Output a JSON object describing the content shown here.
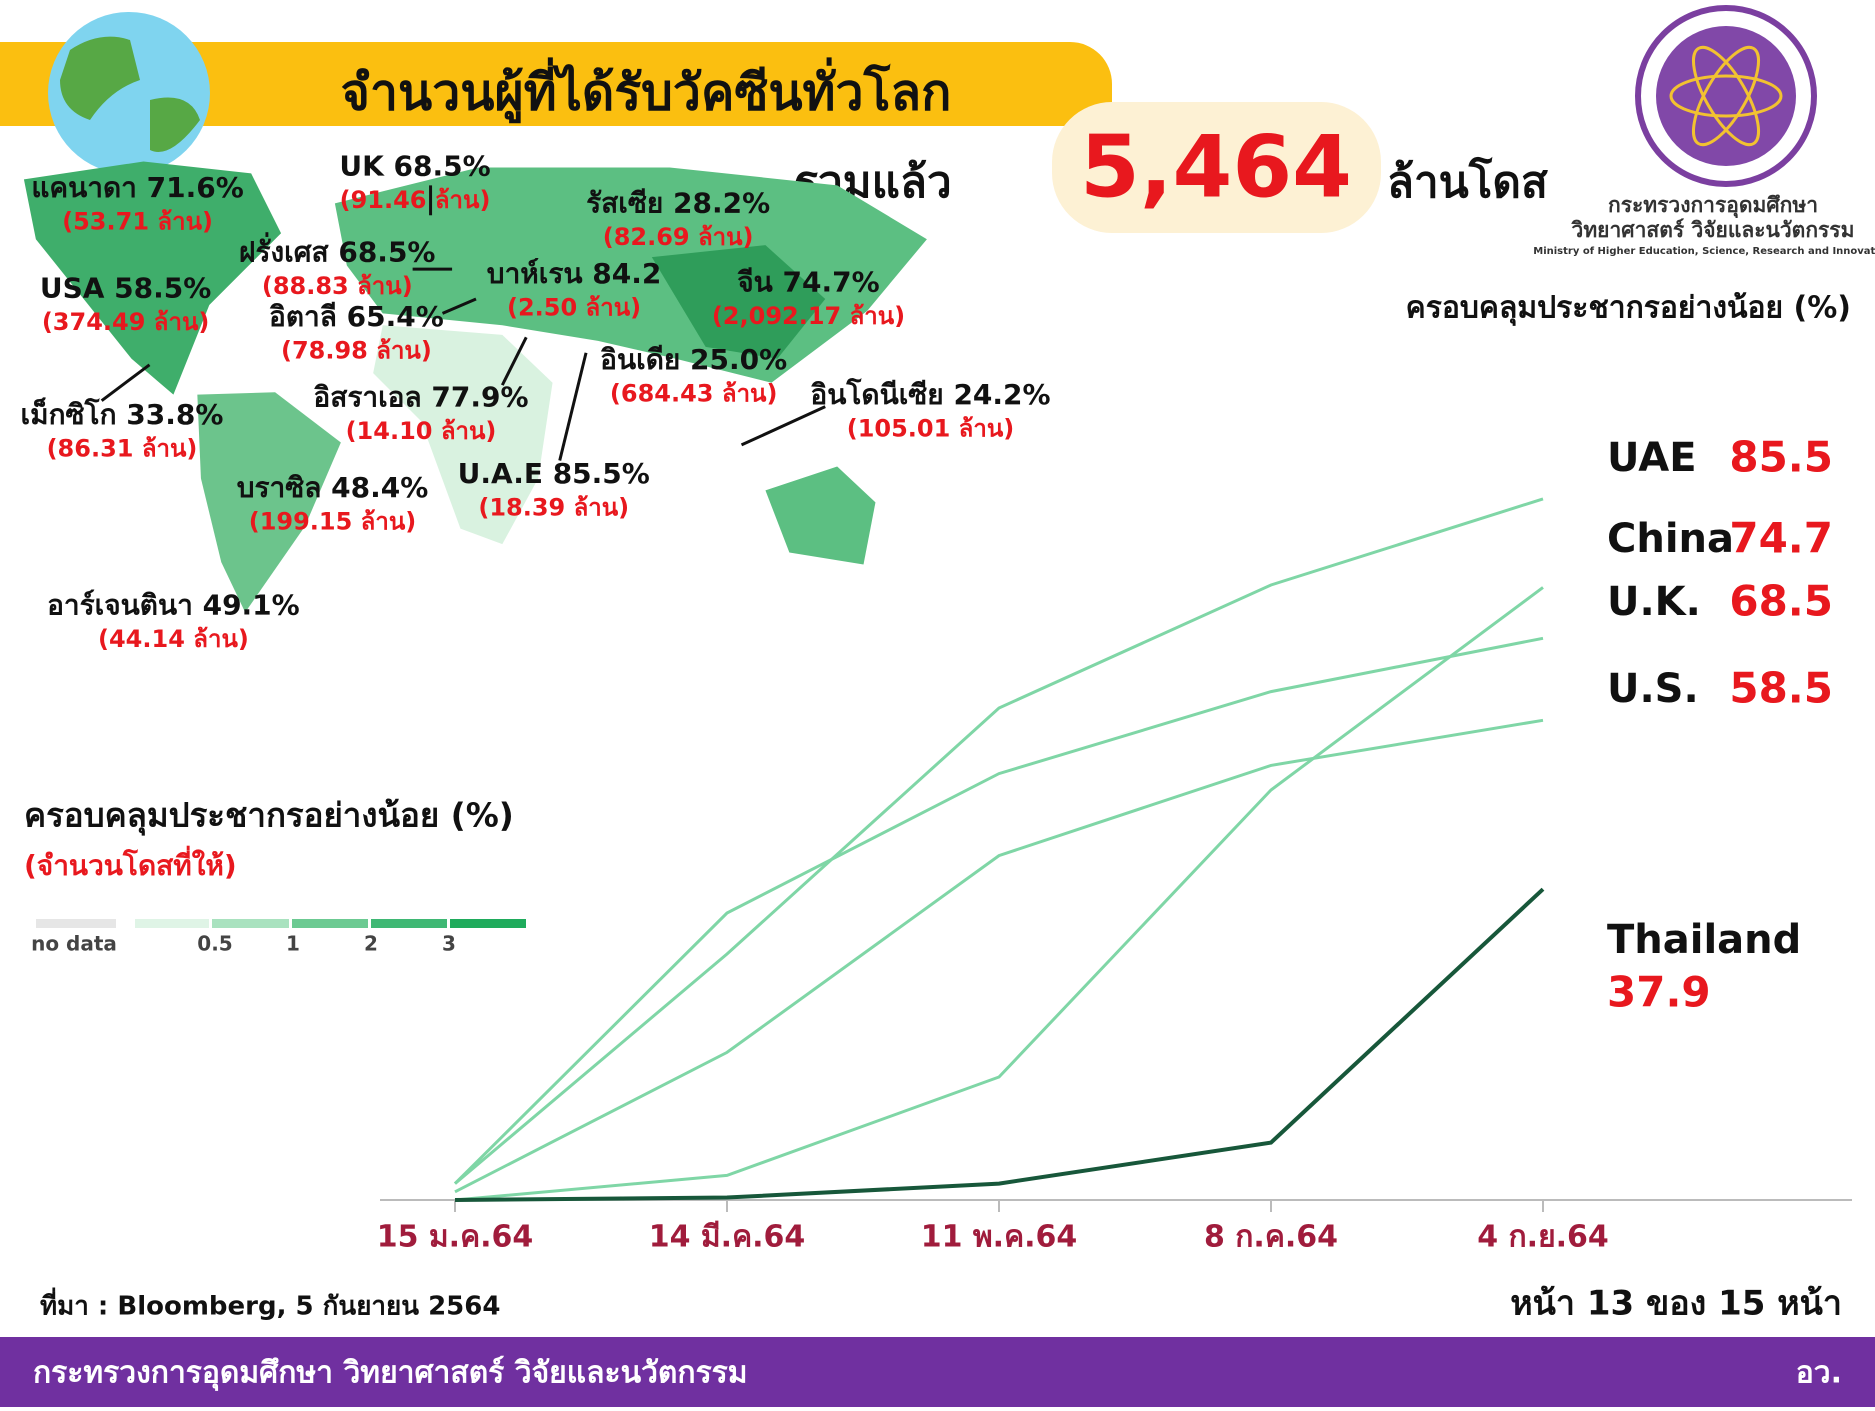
{
  "header": {
    "title": "จำนวนผู้ที่ได้รับวัคซีนทั่วโลก",
    "total_prefix": "รวมแล้ว",
    "total": "5,464",
    "total_unit": "ล้านโดส"
  },
  "logo": {
    "line1": "กระทรวงการอุดมศึกษา",
    "line2": "วิทยาศาสตร์ วิจัยและนวัตกรรม",
    "line3": "Ministry of Higher Education, Science, Research and Innovation"
  },
  "map": {
    "annotations": [
      {
        "label": "แคนาดา 71.6%",
        "doses": "(53.71 ล้าน)"
      },
      {
        "label": "UK 68.5%",
        "doses": "(91.46 ล้าน)"
      },
      {
        "label": "รัสเซีย 28.2%",
        "doses": "(82.69 ล้าน)"
      },
      {
        "label": "ฝรั่งเศส 68.5%",
        "doses": "(88.83 ล้าน)"
      },
      {
        "label": "USA 58.5%",
        "doses": "(374.49 ล้าน)"
      },
      {
        "label": "อิตาลี 65.4%",
        "doses": "(78.98 ล้าน)"
      },
      {
        "label": "บาห์เรน 84.2",
        "doses": "(2.50 ล้าน)"
      },
      {
        "label": "จีน 74.7%",
        "doses": "(2,092.17 ล้าน)"
      },
      {
        "label": "อินเดีย 25.0%",
        "doses": "(684.43 ล้าน)"
      },
      {
        "label": "อิสราเอล 77.9%",
        "doses": "(14.10 ล้าน)"
      },
      {
        "label": "อินโดนีเซีย 24.2%",
        "doses": "(105.01 ล้าน)"
      },
      {
        "label": "เม็กซิโก 33.8%",
        "doses": "(86.31 ล้าน)"
      },
      {
        "label": "U.A.E 85.5%",
        "doses": "(18.39 ล้าน)"
      },
      {
        "label": "บราซิล 48.4%",
        "doses": "(199.15 ล้าน)"
      },
      {
        "label": "อาร์เจนตินา 49.1%",
        "doses": "(44.14 ล้าน)"
      }
    ],
    "legend": {
      "title": "ครอบคลุมประชากรอย่างน้อย (%)",
      "subtitle": "(จำนวนโดสที่ให้)",
      "items": [
        "no data",
        "0.5",
        "1",
        "2",
        "3"
      ]
    }
  },
  "chart_data": {
    "type": "line",
    "title": "ครอบคลุมประชากรอย่างน้อย (%)",
    "categories": [
      "15 ม.ค.64",
      "14 มี.ค.64",
      "11 พ.ค.64",
      "8 ก.ค.64",
      "4 ก.ย.64"
    ],
    "ylim": [
      0,
      100
    ],
    "series": [
      {
        "name": "UAE",
        "color": "#7fd6a6",
        "values": [
          2,
          30,
          60,
          75,
          85.5
        ]
      },
      {
        "name": "China",
        "color": "#7fd6a6",
        "values": [
          0,
          3,
          15,
          50,
          74.7
        ]
      },
      {
        "name": "U.K.",
        "color": "#7fd6a6",
        "values": [
          2,
          35,
          52,
          62,
          68.5
        ]
      },
      {
        "name": "U.S.",
        "color": "#7fd6a6",
        "values": [
          1,
          18,
          42,
          53,
          58.5
        ]
      },
      {
        "name": "Thailand",
        "color": "#17573a",
        "values": [
          0,
          0.3,
          2,
          7,
          37.9
        ]
      }
    ]
  },
  "footer": {
    "source": "ที่มา : Bloomberg, 5 กันยายน 2564",
    "page": "หน้า 13 ของ 15 หน้า",
    "org": "กระทรวงการอุดมศึกษา วิทยาศาสตร์ วิจัยและนวัตกรรม",
    "abbr": "อว."
  }
}
